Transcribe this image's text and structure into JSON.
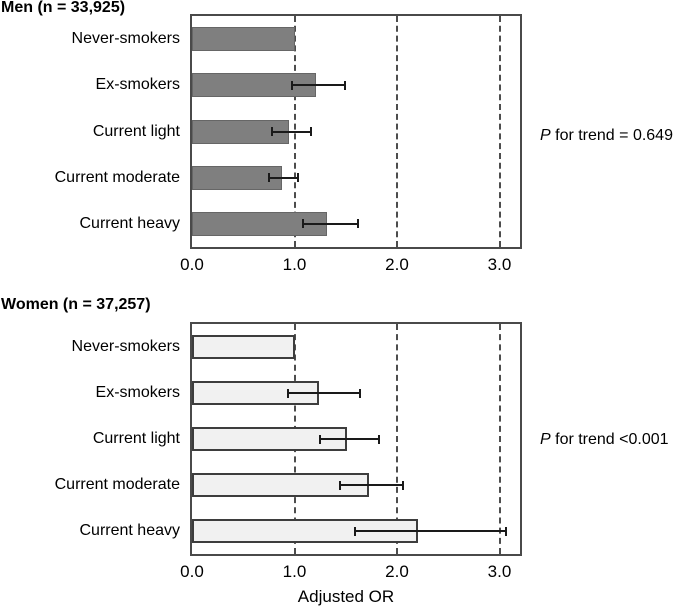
{
  "figure": {
    "x_axis_title": "Adjusted OR"
  },
  "chart_data": [
    {
      "type": "bar",
      "orientation": "horizontal",
      "title": "Men (n = 33,925)",
      "categories": [
        "Never-smokers",
        "Ex-smokers",
        "Current light",
        "Current moderate",
        "Current heavy"
      ],
      "values": [
        1.0,
        1.21,
        0.95,
        0.88,
        1.32
      ],
      "ci_low": [
        null,
        0.97,
        0.77,
        0.74,
        1.07
      ],
      "ci_high": [
        null,
        1.5,
        1.17,
        1.04,
        1.63
      ],
      "xlim": [
        0,
        3.2
      ],
      "tick_values": [
        0,
        1,
        2,
        3
      ],
      "tick_labels": [
        "0.0",
        "1.0",
        "2.0",
        "3.0"
      ],
      "gridlines": [
        1,
        2,
        3
      ],
      "grid_style": "dashed",
      "xlabel": "",
      "p_trend_italic": "P",
      "p_trend_text": " for trend = 0.649",
      "bar_fill": "#7f7f7f",
      "bar_border": "#666666"
    },
    {
      "type": "bar",
      "orientation": "horizontal",
      "title": "Women (n = 37,257)",
      "categories": [
        "Never-smokers",
        "Ex-smokers",
        "Current light",
        "Current moderate",
        "Current heavy"
      ],
      "values": [
        1.0,
        1.24,
        1.51,
        1.73,
        2.2
      ],
      "ci_low": [
        null,
        0.93,
        1.24,
        1.43,
        1.58
      ],
      "ci_high": [
        null,
        1.65,
        1.83,
        2.07,
        3.07
      ],
      "xlim": [
        0,
        3.2
      ],
      "tick_values": [
        0,
        1,
        2,
        3
      ],
      "tick_labels": [
        "0.0",
        "1.0",
        "2.0",
        "3.0"
      ],
      "gridlines": [
        1,
        2,
        3
      ],
      "grid_style": "dashed",
      "xlabel": "Adjusted OR",
      "p_trend_italic": "P",
      "p_trend_text": " for trend <0.001",
      "bar_fill": "#f1f1f1",
      "bar_border": "#3d3d3d"
    }
  ]
}
